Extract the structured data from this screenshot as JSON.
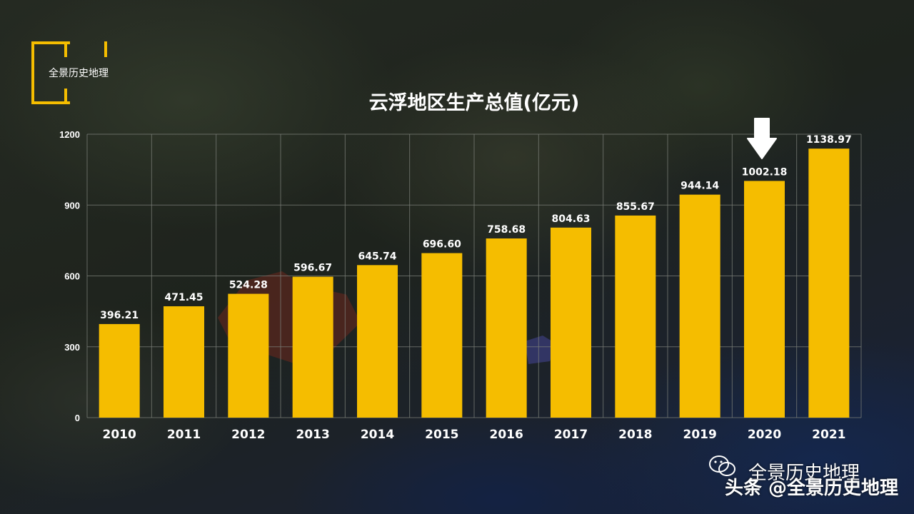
{
  "logo": {
    "text": "全景历史地理"
  },
  "watermark": {
    "account": "全景历史地理",
    "platform_line": "头条 @全景历史地理"
  },
  "colors": {
    "bar": "#f5bd00",
    "accent": "#f5bd00",
    "grid": "#7b7f78",
    "text": "#ffffff"
  },
  "icons": [
    "down-arrow-icon",
    "wechat-icon"
  ],
  "chart_data": {
    "type": "bar",
    "title": "云浮地区生产总值(亿元)",
    "xlabel": "",
    "ylabel": "",
    "categories": [
      "2010",
      "2011",
      "2012",
      "2013",
      "2014",
      "2015",
      "2016",
      "2017",
      "2018",
      "2019",
      "2020",
      "2021"
    ],
    "values": [
      396.21,
      471.45,
      524.28,
      596.67,
      645.74,
      696.6,
      758.68,
      804.63,
      855.67,
      944.14,
      1002.18,
      1138.97
    ],
    "value_labels": [
      "396.21",
      "471.45",
      "524.28",
      "596.67",
      "645.74",
      "696.60",
      "758.68",
      "804.63",
      "855.67",
      "944.14",
      "1002.18",
      "1138.97"
    ],
    "ylim": [
      0,
      1200
    ],
    "yticks": [
      0,
      300,
      600,
      900,
      1200
    ],
    "grid": true,
    "highlight_category": "2020"
  }
}
